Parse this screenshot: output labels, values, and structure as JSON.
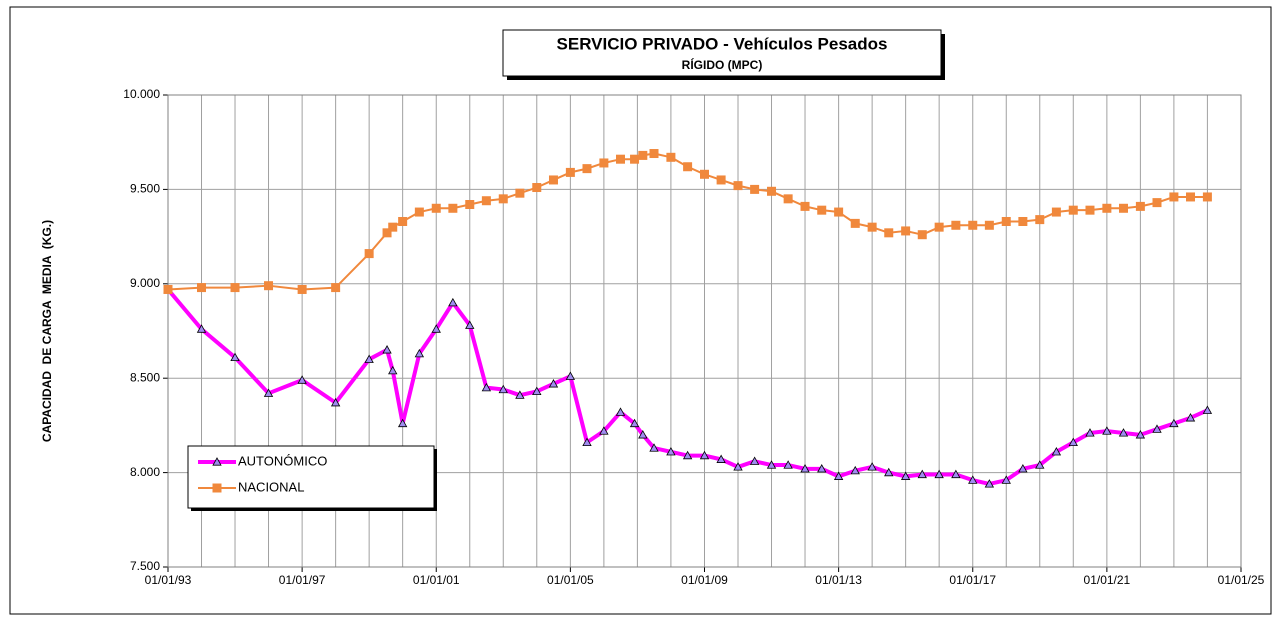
{
  "chart_data": {
    "type": "line",
    "title": "SERVICIO PRIVADO - Vehículos Pesados",
    "subtitle": "RÍGIDO (MPC)",
    "y_label": "CAPACIDAD  DE CARGA  MEDIA  (KG.)",
    "x": [
      "1993-01-01",
      "1994-01-01",
      "1995-01-01",
      "1996-01-01",
      "1997-01-01",
      "1998-01-01",
      "1999-01-01",
      "1999-07-15",
      "1999-09-15",
      "2000-01-01",
      "2000-07-01",
      "2001-01-01",
      "2001-07-01",
      "2002-01-01",
      "2002-07-01",
      "2003-01-01",
      "2003-07-01",
      "2004-01-01",
      "2004-07-01",
      "2005-01-01",
      "2005-07-01",
      "2006-01-01",
      "2006-07-01",
      "2006-12-01",
      "2007-03-01",
      "2007-07-01",
      "2008-01-01",
      "2008-07-01",
      "2009-01-01",
      "2009-07-01",
      "2010-01-01",
      "2010-07-01",
      "2011-01-01",
      "2011-07-01",
      "2012-01-01",
      "2012-07-01",
      "2013-01-01",
      "2013-07-01",
      "2014-01-01",
      "2014-07-01",
      "2015-01-01",
      "2015-07-01",
      "2016-01-01",
      "2016-07-01",
      "2017-01-01",
      "2017-07-01",
      "2018-01-01",
      "2018-07-01",
      "2019-01-01",
      "2019-07-01",
      "2020-01-01",
      "2020-07-01",
      "2021-01-01",
      "2021-07-01",
      "2022-01-01",
      "2022-07-01",
      "2023-01-01",
      "2023-07-01",
      "2024-01-01"
    ],
    "series": [
      {
        "name": "AUTONÓMICO",
        "color": "#ff00ff",
        "marker": "triangle",
        "marker_color": "#a08cf0",
        "values": [
          8970,
          8760,
          8610,
          8420,
          8490,
          8370,
          8600,
          8650,
          8540,
          8260,
          8630,
          8760,
          8900,
          8780,
          8450,
          8440,
          8410,
          8430,
          8470,
          8510,
          8160,
          8220,
          8320,
          8260,
          8200,
          8130,
          8110,
          8090,
          8090,
          8070,
          8030,
          8060,
          8040,
          8040,
          8020,
          8020,
          7980,
          8010,
          8030,
          8000,
          7980,
          7990,
          7990,
          7990,
          7960,
          7940,
          7960,
          8020,
          8040,
          8110,
          8160,
          8210,
          8220,
          8210,
          8200,
          8230,
          8260,
          8290,
          8330
        ]
      },
      {
        "name": "NACIONAL",
        "color": "#f0883c",
        "marker": "square",
        "marker_color": "#f0883c",
        "values": [
          8970,
          8980,
          8980,
          8990,
          8970,
          8980,
          9160,
          9270,
          9300,
          9330,
          9380,
          9400,
          9400,
          9420,
          9440,
          9450,
          9480,
          9510,
          9550,
          9590,
          9610,
          9640,
          9660,
          9660,
          9680,
          9690,
          9670,
          9620,
          9580,
          9550,
          9520,
          9500,
          9490,
          9450,
          9410,
          9390,
          9380,
          9320,
          9300,
          9270,
          9280,
          9260,
          9300,
          9310,
          9310,
          9310,
          9330,
          9330,
          9340,
          9380,
          9390,
          9390,
          9400,
          9400,
          9410,
          9430,
          9460,
          9460,
          9460
        ]
      }
    ],
    "xlim": [
      "1993-01-01",
      "2025-01-01"
    ],
    "xticks": [
      {
        "value": "1993-01-01",
        "label": "01/01/93"
      },
      {
        "value": "1997-01-01",
        "label": "01/01/97"
      },
      {
        "value": "2001-01-01",
        "label": "01/01/01"
      },
      {
        "value": "2005-01-01",
        "label": "01/01/05"
      },
      {
        "value": "2009-01-01",
        "label": "01/01/09"
      },
      {
        "value": "2013-01-01",
        "label": "01/01/13"
      },
      {
        "value": "2017-01-01",
        "label": "01/01/17"
      },
      {
        "value": "2021-01-01",
        "label": "01/01/21"
      },
      {
        "value": "2025-01-01",
        "label": "01/01/25"
      }
    ],
    "xgrid": [
      "1994-01-01",
      "1995-01-01",
      "1996-01-01",
      "1997-01-01",
      "1998-01-01",
      "1999-01-01",
      "2000-01-01",
      "2001-01-01",
      "2002-01-01",
      "2003-01-01",
      "2004-01-01",
      "2005-01-01",
      "2006-01-01",
      "2007-01-01",
      "2008-01-01",
      "2009-01-01",
      "2010-01-01",
      "2011-01-01",
      "2012-01-01",
      "2013-01-01",
      "2014-01-01",
      "2015-01-01",
      "2016-01-01",
      "2017-01-01",
      "2018-01-01",
      "2019-01-01",
      "2020-01-01",
      "2021-01-01",
      "2022-01-01",
      "2023-01-01",
      "2024-01-01",
      "2025-01-01"
    ],
    "ylim": [
      7500,
      10000
    ],
    "yticks": [
      {
        "value": 7500,
        "label": "7.500"
      },
      {
        "value": 8000,
        "label": "8.000"
      },
      {
        "value": 8500,
        "label": "8.500"
      },
      {
        "value": 9000,
        "label": "9.000"
      },
      {
        "value": 9500,
        "label": "9.500"
      },
      {
        "value": 10000,
        "label": "10.000"
      }
    ],
    "grid": true,
    "legend": "lower left"
  }
}
